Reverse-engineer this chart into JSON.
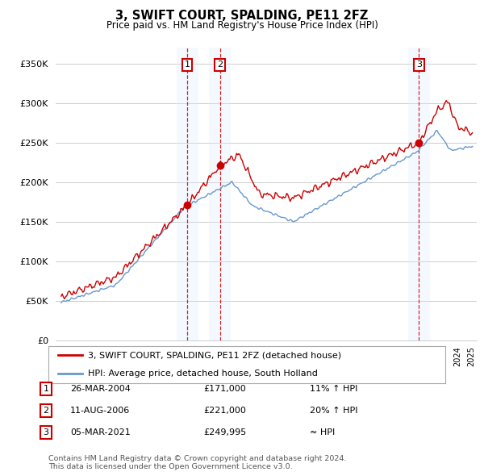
{
  "title": "3, SWIFT COURT, SPALDING, PE11 2FZ",
  "subtitle": "Price paid vs. HM Land Registry's House Price Index (HPI)",
  "ylim": [
    0,
    370000
  ],
  "yticks": [
    0,
    50000,
    100000,
    150000,
    200000,
    250000,
    300000,
    350000
  ],
  "ytick_labels": [
    "£0",
    "£50K",
    "£100K",
    "£150K",
    "£200K",
    "£250K",
    "£300K",
    "£350K"
  ],
  "background_color": "#ffffff",
  "grid_color": "#cccccc",
  "transactions": [
    {
      "date_num": 2004.23,
      "price": 171000,
      "label": "1"
    },
    {
      "date_num": 2006.61,
      "price": 221000,
      "label": "2"
    },
    {
      "date_num": 2021.17,
      "price": 249995,
      "label": "3"
    }
  ],
  "transaction_table": [
    {
      "num": "1",
      "date": "26-MAR-2004",
      "price": "£171,000",
      "hpi": "11% ↑ HPI"
    },
    {
      "num": "2",
      "date": "11-AUG-2006",
      "price": "£221,000",
      "hpi": "20% ↑ HPI"
    },
    {
      "num": "3",
      "date": "05-MAR-2021",
      "price": "£249,995",
      "hpi": "≈ HPI"
    }
  ],
  "legend_line1": "3, SWIFT COURT, SPALDING, PE11 2FZ (detached house)",
  "legend_line2": "HPI: Average price, detached house, South Holland",
  "footnote": "Contains HM Land Registry data © Crown copyright and database right 2024.\nThis data is licensed under the Open Government Licence v3.0.",
  "red_color": "#cc0000",
  "blue_color": "#6699cc",
  "shade_color": "#ddeeff",
  "xlim_start": 1994.6,
  "xlim_end": 2025.4
}
